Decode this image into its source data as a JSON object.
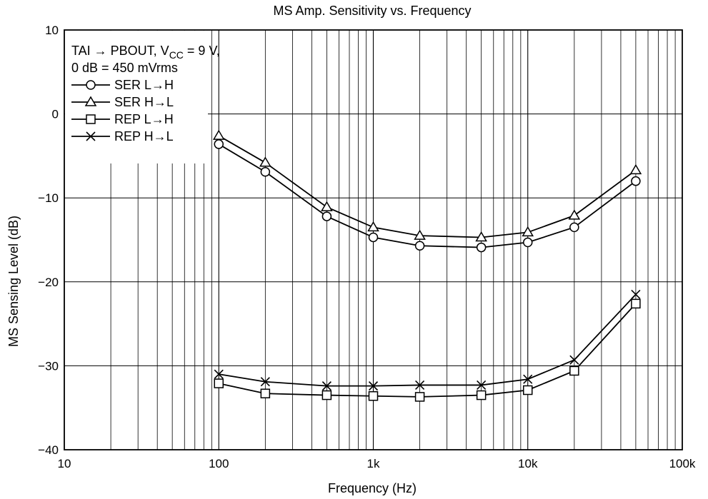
{
  "chart_data": {
    "type": "line",
    "title": "MS Amp. Sensitivity vs. Frequency",
    "xlabel": "Frequency  (Hz)",
    "ylabel": "MS Sensing Level  (dB)",
    "x_scale": "log",
    "xlim": [
      10,
      100000
    ],
    "ylim": [
      -40,
      10
    ],
    "x_ticks": [
      10,
      100,
      1000,
      10000,
      100000
    ],
    "x_tick_labels": [
      "10",
      "100",
      "1k",
      "10k",
      "100k"
    ],
    "y_ticks": [
      -40,
      -30,
      -20,
      -10,
      0,
      10
    ],
    "y_tick_labels": [
      "−40",
      "−30",
      "−20",
      "−10",
      "0",
      "10"
    ],
    "grid": true,
    "legend_position": "top-left",
    "annotation": {
      "line1_prefix": "TAI → PBOUT, V",
      "line1_sub": "CC",
      "line1_suffix": " = 9 V,",
      "line2": "0 dB = 450 mVrms"
    },
    "x": [
      100,
      200,
      500,
      1000,
      2000,
      5000,
      10000,
      20000,
      50000
    ],
    "series": [
      {
        "name": "SER L→H",
        "marker": "circle",
        "values": [
          -3.6,
          -6.9,
          -12.2,
          -14.7,
          -15.7,
          -15.9,
          -15.3,
          -13.5,
          -8.0
        ]
      },
      {
        "name": "SER H→L",
        "marker": "triangle",
        "values": [
          -2.6,
          -5.8,
          -11.1,
          -13.5,
          -14.5,
          -14.7,
          -14.1,
          -12.1,
          -6.7
        ]
      },
      {
        "name": "REP L→H",
        "marker": "square",
        "values": [
          -32.1,
          -33.3,
          -33.5,
          -33.6,
          -33.7,
          -33.5,
          -32.9,
          -30.6,
          -22.6
        ]
      },
      {
        "name": "REP H→L",
        "marker": "cross",
        "values": [
          -31.0,
          -31.9,
          -32.4,
          -32.4,
          -32.3,
          -32.3,
          -31.6,
          -29.3,
          -21.5
        ]
      }
    ]
  }
}
